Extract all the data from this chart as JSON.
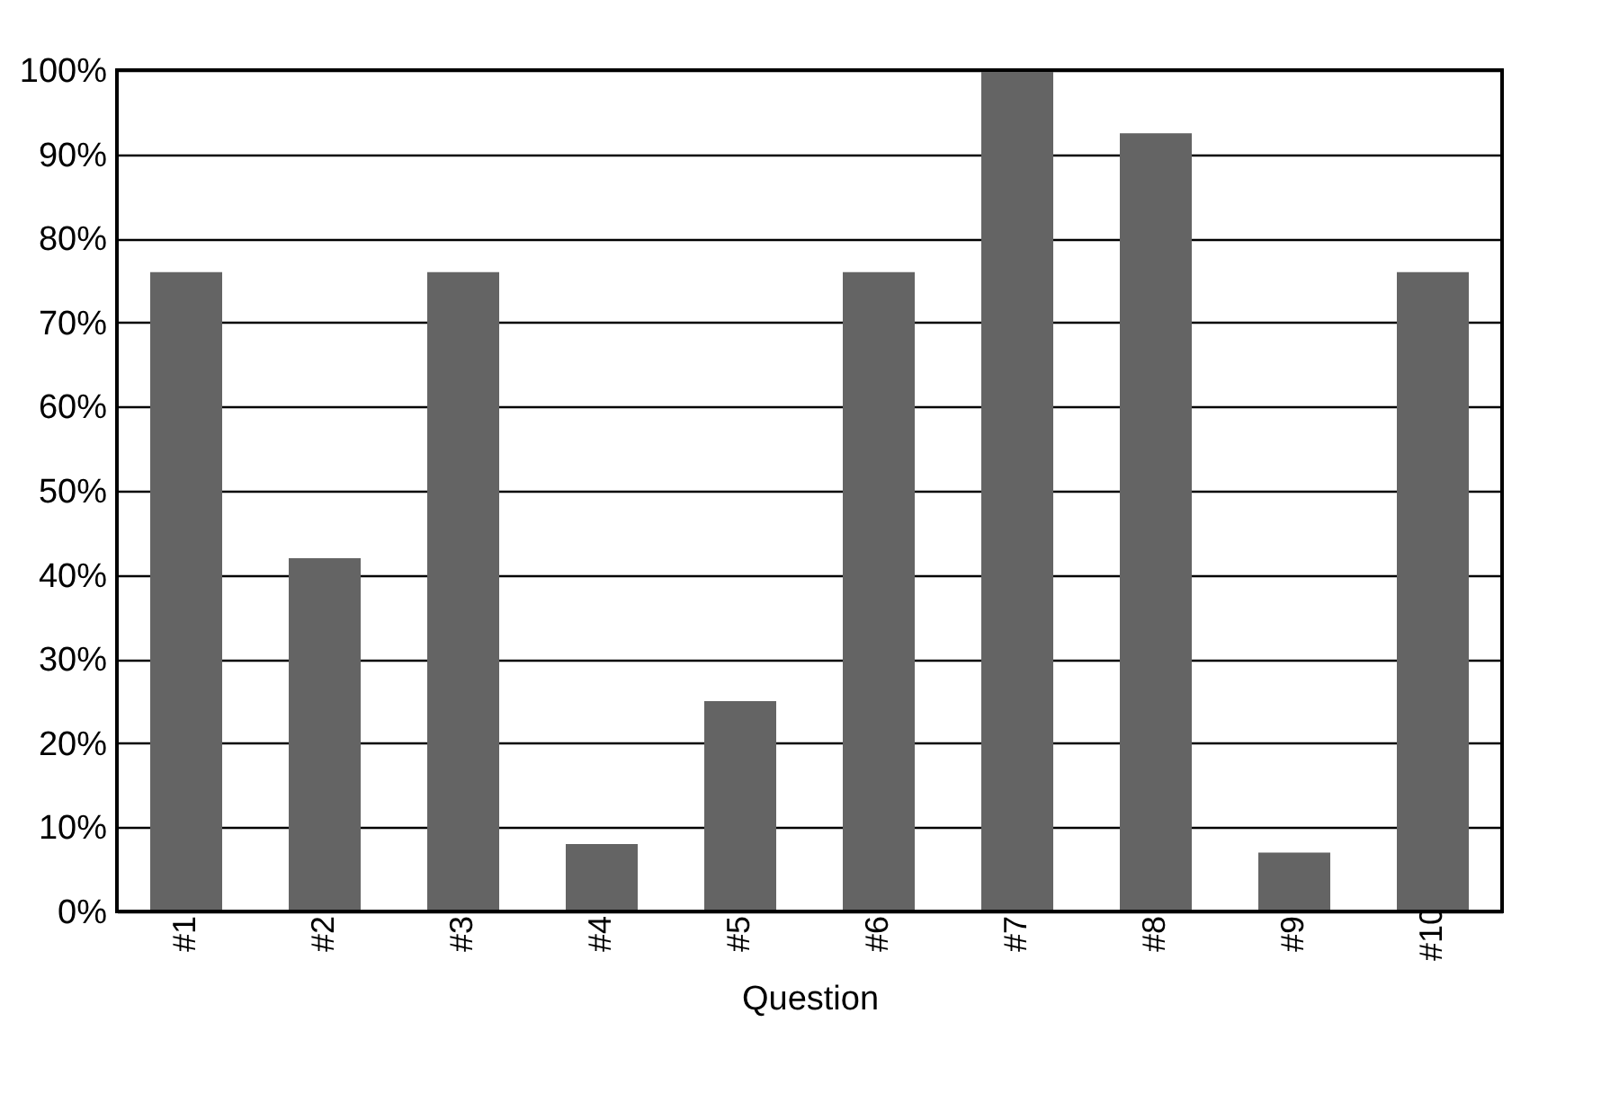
{
  "chart_data": {
    "type": "bar",
    "xlabel": "Question",
    "categories": [
      "#1",
      "#2",
      "#3",
      "#4",
      "#5",
      "#6",
      "#7",
      "#8",
      "#9",
      "#10"
    ],
    "values": [
      76,
      42,
      76,
      8,
      25,
      76,
      100,
      92.5,
      7,
      76
    ],
    "color": "#646464",
    "ylim": [
      0,
      100
    ],
    "yticks": [
      {
        "value": 0,
        "label": "0%"
      },
      {
        "value": 10,
        "label": "10%"
      },
      {
        "value": 20,
        "label": "20%"
      },
      {
        "value": 30,
        "label": "30%"
      },
      {
        "value": 40,
        "label": "40%"
      },
      {
        "value": 50,
        "label": "50%"
      },
      {
        "value": 60,
        "label": "60%"
      },
      {
        "value": 70,
        "label": "70%"
      },
      {
        "value": 80,
        "label": "80%"
      },
      {
        "value": 90,
        "label": "90%"
      },
      {
        "value": 100,
        "label": "100%"
      }
    ],
    "grid": "y"
  }
}
